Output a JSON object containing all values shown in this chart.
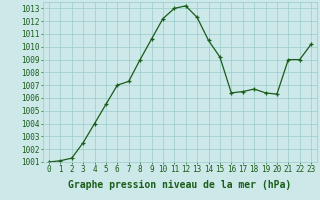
{
  "x": [
    0,
    1,
    2,
    3,
    4,
    5,
    6,
    7,
    8,
    9,
    10,
    11,
    12,
    13,
    14,
    15,
    16,
    17,
    18,
    19,
    20,
    21,
    22,
    23
  ],
  "y": [
    1001.0,
    1001.1,
    1001.3,
    1002.5,
    1004.0,
    1005.5,
    1007.0,
    1007.3,
    1009.0,
    1010.6,
    1012.2,
    1013.0,
    1013.2,
    1012.3,
    1010.5,
    1009.2,
    1006.4,
    1006.5,
    1006.7,
    1006.4,
    1006.3,
    1009.0,
    1009.0,
    1010.2
  ],
  "xlabel": "Graphe pression niveau de la mer (hPa)",
  "ylim": [
    1001.0,
    1013.5
  ],
  "xlim": [
    -0.5,
    23.5
  ],
  "yticks": [
    1001,
    1002,
    1003,
    1004,
    1005,
    1006,
    1007,
    1008,
    1009,
    1010,
    1011,
    1012,
    1013
  ],
  "xticks": [
    0,
    1,
    2,
    3,
    4,
    5,
    6,
    7,
    8,
    9,
    10,
    11,
    12,
    13,
    14,
    15,
    16,
    17,
    18,
    19,
    20,
    21,
    22,
    23
  ],
  "line_color": "#1a5c1a",
  "marker": "+",
  "bg_color": "#cce8e8",
  "grid_color": "#99cccc",
  "xlabel_fontsize": 7,
  "tick_fontsize": 5.5,
  "label_color": "#1a5c1a"
}
